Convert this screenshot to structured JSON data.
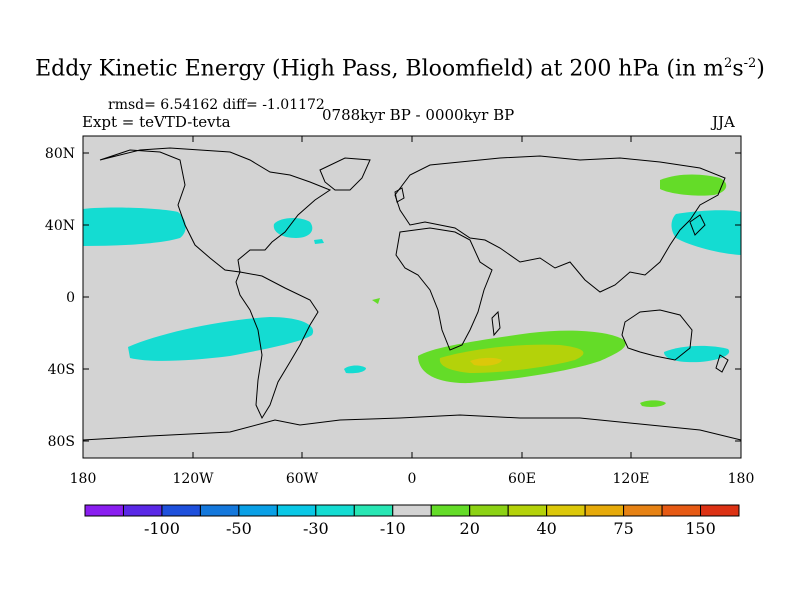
{
  "header": {
    "title_main": "Eddy Kinetic Energy (High Pass, Bloomfield) at 200 hPa (in m",
    "title_sup1": "2",
    "title_mid": "s",
    "title_sup2": "-2",
    "title_end": ")",
    "stats": "rmsd= 6.54162 diff= -1.01172",
    "experiment": "Expt = teVTD-tevta",
    "period": "0788kyr BP - 0000kyr BP",
    "season": "JJA"
  },
  "map": {
    "land_fill": "#d3d3d3",
    "coast_color": "#000000",
    "lat_ticks": [
      "80N",
      "40N",
      "0",
      "40S",
      "80S"
    ],
    "lon_ticks": [
      "180",
      "120W",
      "60W",
      "0",
      "60E",
      "120E",
      "180"
    ],
    "anomaly_regions": [
      {
        "name": "north-pacific-negative",
        "level": "-10"
      },
      {
        "name": "north-atlantic-negative",
        "level": "-10"
      },
      {
        "name": "south-pacific-negative",
        "level": "-10"
      },
      {
        "name": "south-atlantic-negative",
        "level": "-10"
      },
      {
        "name": "australia-negative",
        "level": "-10"
      },
      {
        "name": "southern-indian-ocean-positive",
        "level": "40"
      },
      {
        "name": "siberia-positive",
        "level": "10"
      },
      {
        "name": "southern-ocean-positive",
        "level": "10"
      }
    ]
  },
  "colorbar": {
    "colors": [
      "#8a1ef0",
      "#5a28e6",
      "#1e50dc",
      "#1478dc",
      "#0aa0e6",
      "#0ac8e6",
      "#14dcd2",
      "#28e6b4",
      "#d3d3d3",
      "#64dc28",
      "#8cd214",
      "#b4d20a",
      "#dcc80a",
      "#e6aa0a",
      "#e68214",
      "#e65a14",
      "#dc3214"
    ],
    "labels": [
      {
        "text": "-100",
        "boundary": 2
      },
      {
        "text": "-50",
        "boundary": 4
      },
      {
        "text": "-30",
        "boundary": 6
      },
      {
        "text": "-10",
        "boundary": 8
      },
      {
        "text": "20",
        "boundary": 10
      },
      {
        "text": "40",
        "boundary": 12
      },
      {
        "text": "75",
        "boundary": 14
      },
      {
        "text": "150",
        "boundary": 16
      }
    ]
  }
}
